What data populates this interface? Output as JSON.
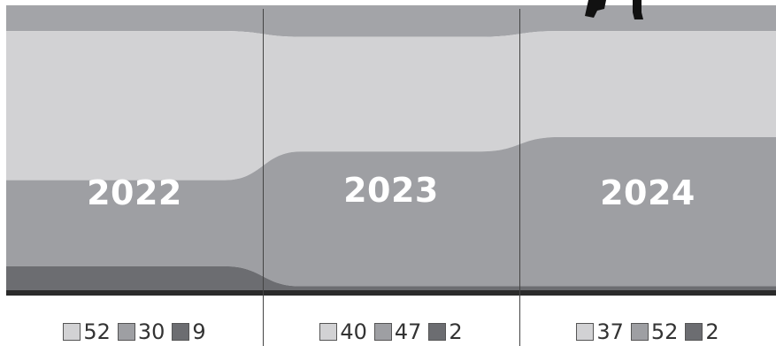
{
  "chart_data": {
    "type": "area",
    "stacked": true,
    "percent_scale": true,
    "categories": [
      "2022",
      "2023",
      "2024"
    ],
    "series": [
      {
        "key": "light",
        "values": [
          52,
          40,
          37
        ],
        "color": "#d2d2d4"
      },
      {
        "key": "mid",
        "values": [
          30,
          47,
          52
        ],
        "color": "#9e9fa3"
      },
      {
        "key": "dark",
        "values": [
          9,
          2,
          2
        ],
        "color": "#6c6d71"
      }
    ],
    "top_band_color": "#a3a4a8",
    "baseline_color": "#2b2b2b",
    "grid": false,
    "legend": "bottom",
    "ylim": [
      0,
      100
    ]
  },
  "years": [
    "2022",
    "2023",
    "2024"
  ],
  "legend": [
    {
      "year": "2022",
      "items": [
        "52",
        "30",
        "9"
      ]
    },
    {
      "year": "2023",
      "items": [
        "40",
        "47",
        "2"
      ]
    },
    {
      "year": "2024",
      "items": [
        "37",
        "52",
        "2"
      ]
    }
  ]
}
